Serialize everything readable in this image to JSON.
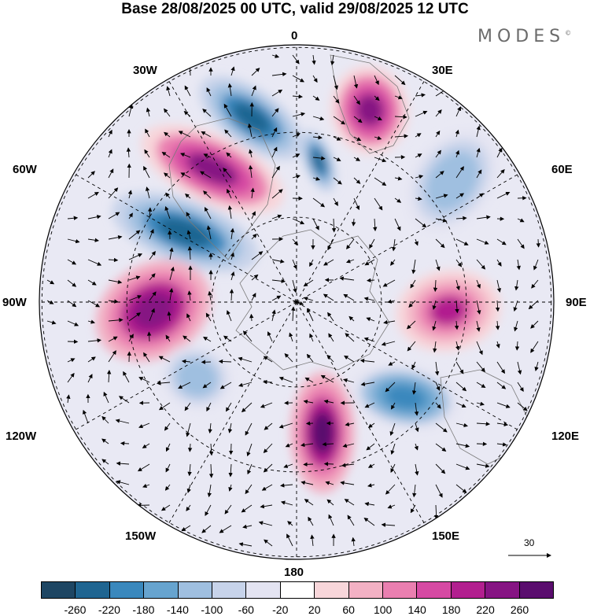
{
  "title": "Base 28/08/2025 00 UTC, valid 29/08/2025 12 UTC",
  "brand": "MODES",
  "brand_mark": "©",
  "longitude_labels": {
    "top": "0",
    "bottom": "180",
    "w30": "30W",
    "e30": "30E",
    "w60": "60W",
    "e60": "60E",
    "w90": "90W",
    "e90": "90E",
    "w120": "120W",
    "e120": "120E",
    "w150": "150W",
    "e150": "150E"
  },
  "vector_legend": {
    "value": "30",
    "icon": "arrow-right-icon"
  },
  "colorbar": {
    "colors": [
      "#1e4663",
      "#1f6591",
      "#3a88bd",
      "#67a4cf",
      "#9fbfe0",
      "#c7d3ea",
      "#e4e4f2",
      "#ffffff",
      "#f8d6da",
      "#f3b1c4",
      "#ea7fb0",
      "#d64aa3",
      "#b21f8f",
      "#861483",
      "#5a0d6e"
    ],
    "ticks": [
      "-260",
      "-220",
      "-180",
      "-140",
      "-100",
      "-60",
      "-20",
      "20",
      "60",
      "100",
      "140",
      "180",
      "220",
      "260"
    ]
  },
  "anomalies": [
    {
      "name": "neg-N-NW",
      "value": -260
    },
    {
      "name": "pos-N-NW",
      "value": 220
    },
    {
      "name": "neg-W",
      "value": -260
    },
    {
      "name": "pos-W",
      "value": 240
    },
    {
      "name": "pos-NE",
      "value": 220
    },
    {
      "name": "neg-E-NE",
      "value": -140
    },
    {
      "name": "pos-E",
      "value": 180
    },
    {
      "name": "neg-SE",
      "value": -220
    },
    {
      "name": "pos-S",
      "value": 260
    },
    {
      "name": "neg-SW",
      "value": -140
    }
  ]
}
